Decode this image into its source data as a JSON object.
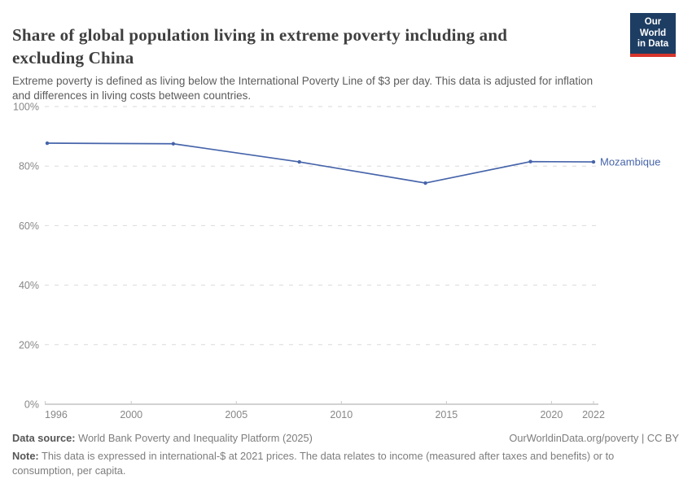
{
  "header": {
    "title_lines": [
      "Share of global population living in extreme poverty including and",
      "excluding China"
    ],
    "subtitle_lines": [
      "Extreme poverty is defined as living below the International Poverty Line of $3 per day. This data is adjusted for inflation",
      "and differences in living costs between countries."
    ]
  },
  "logo": {
    "line1": "Our World",
    "line2": "in Data",
    "bg_color": "#1d3d63",
    "accent_color": "#d7352c"
  },
  "chart_data": {
    "type": "line",
    "title": "Share of global population living in extreme poverty including and excluding China",
    "entity": "Mozambique",
    "x": [
      1996,
      2002,
      2008,
      2014,
      2019,
      2022
    ],
    "values": [
      87.7,
      87.5,
      81.4,
      74.3,
      81.5,
      81.4
    ],
    "unit": "%",
    "x_ticks": [
      1996,
      2000,
      2005,
      2010,
      2015,
      2020,
      2022
    ],
    "y_ticks": [
      0,
      20,
      40,
      60,
      80,
      100
    ],
    "xlim": [
      1996,
      2022
    ],
    "ylim": [
      0,
      100
    ],
    "grid": true,
    "legend_position": "end-of-line-label",
    "line_color": "#4664aa",
    "grid_color": "#dadada",
    "axis_color": "#a6a6a6",
    "tick_label_color": "#878787"
  },
  "footer": {
    "source_label": "Data source:",
    "source_value": "World Bank Poverty and Inequality Platform (2025)",
    "attribution": "OurWorldinData.org/poverty | CC BY",
    "note_label": "Note:",
    "note_lines": [
      "This data is expressed in international-$ at 2021 prices. The data relates to income (measured after taxes and benefits) or to",
      "consumption, per capita."
    ]
  }
}
